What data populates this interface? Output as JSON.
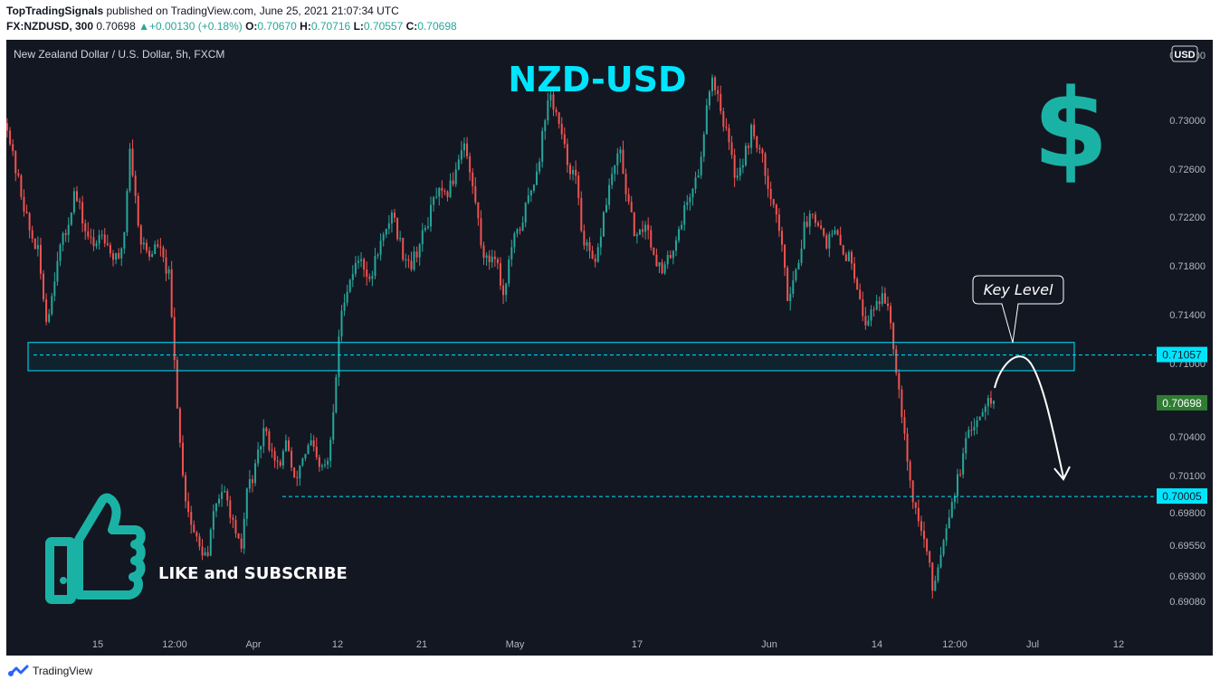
{
  "publisher": {
    "name": "TopTradingSignals",
    "text": "published on TradingView.com, June 25, 2021 21:07:34 UTC"
  },
  "quote": {
    "symbol": "FX:NZDUSD, 300",
    "last": "0.70698",
    "change": "▲+0.00130 (+0.18%)",
    "o_label": "O:",
    "o": "0.70670",
    "h_label": "H:",
    "h": "0.70716",
    "l_label": "L:",
    "l": "0.70557",
    "c_label": "C:",
    "c": "0.70698"
  },
  "legend": "New Zealand Dollar / U.S. Dollar, 5h, FXCM",
  "currency_badge": "USD",
  "watermark": "NZD-USD",
  "dollar_sign": "$",
  "key_level_label": "Key Level",
  "like_text": "LIKE and SUBSCRIBE",
  "footer_brand": "TradingView",
  "colors": {
    "background": "#131722",
    "up": "#26a69a",
    "down": "#ef5350",
    "accent": "#00e5ff",
    "teal_icon": "#1bb2a6",
    "last_price_bg": "#2e7d32"
  },
  "chart_data": {
    "type": "candlestick",
    "title": "New Zealand Dollar / U.S. Dollar, 5h, FXCM",
    "y_ticks": [
      "0.73300",
      "0.73000",
      "0.72600",
      "0.72200",
      "0.71800",
      "0.71400",
      "0.71000",
      "0.70400",
      "0.70100",
      "0.69800",
      "0.69550",
      "0.69300",
      "0.69080"
    ],
    "x_ticks": [
      "15",
      "12:00",
      "Apr",
      "12",
      "21",
      "May",
      "17",
      "Jun",
      "14",
      "12:00",
      "Jul",
      "12"
    ],
    "price_labels": [
      "0.71057",
      "0.70698",
      "0.70005"
    ],
    "ylim": [
      0.6893,
      0.734
    ],
    "key_zone": [
      0.7094,
      0.7115
    ],
    "resistance_level": 0.71057,
    "support_level": 0.70005,
    "last_price": 0.70698,
    "path": [
      [
        0,
        0.7278
      ],
      [
        2,
        0.7252
      ],
      [
        5,
        0.7226
      ],
      [
        8,
        0.7198
      ],
      [
        11,
        0.7182
      ],
      [
        14,
        0.7132
      ],
      [
        16,
        0.715
      ],
      [
        18,
        0.718
      ],
      [
        21,
        0.7196
      ],
      [
        24,
        0.7226
      ],
      [
        26,
        0.7214
      ],
      [
        28,
        0.7198
      ],
      [
        31,
        0.7186
      ],
      [
        34,
        0.72
      ],
      [
        37,
        0.7182
      ],
      [
        40,
        0.7174
      ],
      [
        42,
        0.7198
      ],
      [
        44,
        0.7261
      ],
      [
        46,
        0.7222
      ],
      [
        48,
        0.719
      ],
      [
        51,
        0.718
      ],
      [
        54,
        0.7188
      ],
      [
        56,
        0.7175
      ],
      [
        58,
        0.7164
      ],
      [
        60,
        0.71
      ],
      [
        62,
        0.704
      ],
      [
        64,
        0.7
      ],
      [
        66,
        0.698
      ],
      [
        69,
        0.6962
      ],
      [
        72,
        0.6955
      ],
      [
        74,
        0.699
      ],
      [
        77,
        0.7005
      ],
      [
        80,
        0.699
      ],
      [
        82,
        0.6968
      ],
      [
        84,
        0.6962
      ],
      [
        86,
        0.7005
      ],
      [
        89,
        0.702
      ],
      [
        92,
        0.705
      ],
      [
        95,
        0.7035
      ],
      [
        98,
        0.702
      ],
      [
        100,
        0.7045
      ],
      [
        103,
        0.701
      ],
      [
        106,
        0.703
      ],
      [
        109,
        0.704
      ],
      [
        112,
        0.702
      ],
      [
        115,
        0.7025
      ],
      [
        117,
        0.706
      ],
      [
        119,
        0.712
      ],
      [
        121,
        0.715
      ],
      [
        124,
        0.7168
      ],
      [
        127,
        0.718
      ],
      [
        130,
        0.7158
      ],
      [
        133,
        0.7185
      ],
      [
        136,
        0.7196
      ],
      [
        138,
        0.7214
      ],
      [
        140,
        0.7196
      ],
      [
        142,
        0.7182
      ],
      [
        145,
        0.7174
      ],
      [
        148,
        0.7188
      ],
      [
        151,
        0.7206
      ],
      [
        154,
        0.7226
      ],
      [
        157,
        0.7222
      ],
      [
        160,
        0.7236
      ],
      [
        162,
        0.7254
      ],
      [
        164,
        0.7266
      ],
      [
        166,
        0.724
      ],
      [
        168,
        0.722
      ],
      [
        170,
        0.719
      ],
      [
        172,
        0.7175
      ],
      [
        175,
        0.7182
      ],
      [
        178,
        0.715
      ],
      [
        181,
        0.7186
      ],
      [
        184,
        0.72
      ],
      [
        187,
        0.7222
      ],
      [
        189,
        0.7236
      ],
      [
        191,
        0.7254
      ],
      [
        193,
        0.7284
      ],
      [
        195,
        0.7298
      ],
      [
        197,
        0.7285
      ],
      [
        199,
        0.7266
      ],
      [
        201,
        0.725
      ],
      [
        204,
        0.7236
      ],
      [
        206,
        0.72
      ],
      [
        208,
        0.7184
      ],
      [
        211,
        0.717
      ],
      [
        214,
        0.721
      ],
      [
        217,
        0.724
      ],
      [
        220,
        0.7256
      ],
      [
        223,
        0.7215
      ],
      [
        226,
        0.719
      ],
      [
        229,
        0.7205
      ],
      [
        232,
        0.7182
      ],
      [
        235,
        0.7166
      ],
      [
        238,
        0.718
      ],
      [
        241,
        0.72
      ],
      [
        244,
        0.722
      ],
      [
        247,
        0.7236
      ],
      [
        249,
        0.725
      ],
      [
        251,
        0.7296
      ],
      [
        253,
        0.7312
      ],
      [
        255,
        0.73
      ],
      [
        257,
        0.728
      ],
      [
        259,
        0.7262
      ],
      [
        261,
        0.724
      ],
      [
        264,
        0.725
      ],
      [
        267,
        0.7272
      ],
      [
        269,
        0.7264
      ],
      [
        271,
        0.725
      ],
      [
        274,
        0.7226
      ],
      [
        277,
        0.72
      ],
      [
        280,
        0.715
      ],
      [
        283,
        0.7168
      ],
      [
        286,
        0.72
      ],
      [
        289,
        0.7214
      ],
      [
        292,
        0.72
      ],
      [
        294,
        0.719
      ],
      [
        297,
        0.7196
      ],
      [
        300,
        0.7182
      ],
      [
        303,
        0.7176
      ],
      [
        306,
        0.715
      ],
      [
        308,
        0.7125
      ],
      [
        310,
        0.714
      ],
      [
        313,
        0.7148
      ],
      [
        316,
        0.7145
      ],
      [
        318,
        0.7115
      ],
      [
        320,
        0.708
      ],
      [
        322,
        0.705
      ],
      [
        324,
        0.701
      ],
      [
        326,
        0.699
      ],
      [
        328,
        0.6975
      ],
      [
        330,
        0.696
      ],
      [
        332,
        0.6932
      ],
      [
        334,
        0.695
      ],
      [
        336,
        0.697
      ],
      [
        338,
        0.699
      ],
      [
        340,
        0.7005
      ],
      [
        342,
        0.702
      ],
      [
        344,
        0.704
      ],
      [
        346,
        0.705
      ],
      [
        348,
        0.706
      ],
      [
        350,
        0.7065
      ],
      [
        352,
        0.7078
      ],
      [
        354,
        0.707
      ]
    ]
  }
}
